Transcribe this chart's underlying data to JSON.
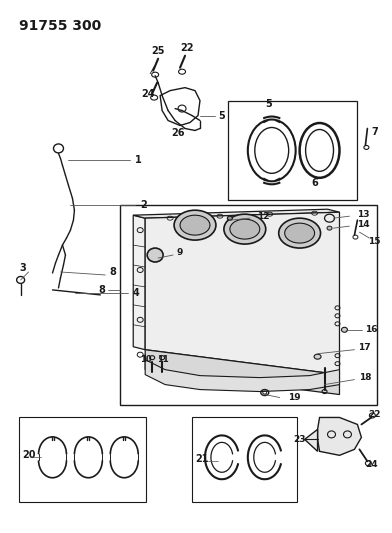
{
  "title": "91755 300",
  "bg": "#ffffff",
  "lc": "#1a1a1a",
  "tc": "#1a1a1a",
  "fig_w": 3.92,
  "fig_h": 5.33,
  "dpi": 100
}
